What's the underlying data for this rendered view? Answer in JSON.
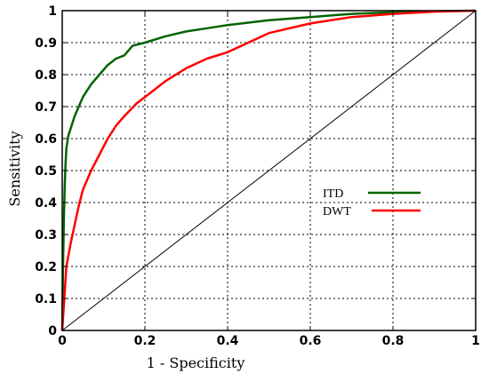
{
  "chart_data": {
    "type": "line",
    "title": "",
    "xlabel": "1 - Specificity",
    "ylabel": "Sensitivity",
    "xlim": [
      0,
      1
    ],
    "ylim": [
      0,
      1
    ],
    "xticks": [
      "0",
      "0.2",
      "0.4",
      "0.6",
      "0.8",
      "1"
    ],
    "xtick_values": [
      0,
      0.2,
      0.4,
      0.6,
      0.8,
      1
    ],
    "yticks": [
      "0",
      "0.1",
      "0.2",
      "0.3",
      "0.4",
      "0.5",
      "0.6",
      "0.7",
      "0.8",
      "0.9",
      "1"
    ],
    "ytick_values": [
      0,
      0.1,
      0.2,
      0.3,
      0.4,
      0.5,
      0.6,
      0.7,
      0.8,
      0.9,
      1
    ],
    "grid": true,
    "legend_position": "center-right",
    "series": [
      {
        "name": "ITD",
        "color": "#006400",
        "x": [
          0,
          0.002,
          0.004,
          0.006,
          0.008,
          0.01,
          0.015,
          0.02,
          0.03,
          0.04,
          0.05,
          0.07,
          0.09,
          0.11,
          0.13,
          0.15,
          0.17,
          0.2,
          0.25,
          0.3,
          0.35,
          0.4,
          0.5,
          0.6,
          0.7,
          0.8,
          0.9,
          1.0
        ],
        "y": [
          0,
          0.2,
          0.35,
          0.45,
          0.52,
          0.57,
          0.61,
          0.63,
          0.67,
          0.7,
          0.73,
          0.77,
          0.8,
          0.83,
          0.85,
          0.86,
          0.89,
          0.9,
          0.92,
          0.935,
          0.945,
          0.955,
          0.97,
          0.98,
          0.99,
          0.995,
          0.998,
          1.0
        ]
      },
      {
        "name": "DWT",
        "color": "#ff0000",
        "x": [
          0,
          0.005,
          0.01,
          0.02,
          0.03,
          0.04,
          0.05,
          0.07,
          0.09,
          0.11,
          0.13,
          0.15,
          0.18,
          0.2,
          0.25,
          0.3,
          0.35,
          0.4,
          0.45,
          0.5,
          0.6,
          0.7,
          0.8,
          0.9,
          1.0
        ],
        "y": [
          0,
          0.1,
          0.2,
          0.27,
          0.33,
          0.39,
          0.44,
          0.5,
          0.55,
          0.6,
          0.64,
          0.67,
          0.71,
          0.73,
          0.78,
          0.82,
          0.85,
          0.87,
          0.9,
          0.93,
          0.96,
          0.98,
          0.99,
          0.997,
          1.0
        ]
      },
      {
        "name": "",
        "color": "#000000",
        "x": [
          0,
          1
        ],
        "y": [
          0,
          1
        ]
      }
    ]
  }
}
